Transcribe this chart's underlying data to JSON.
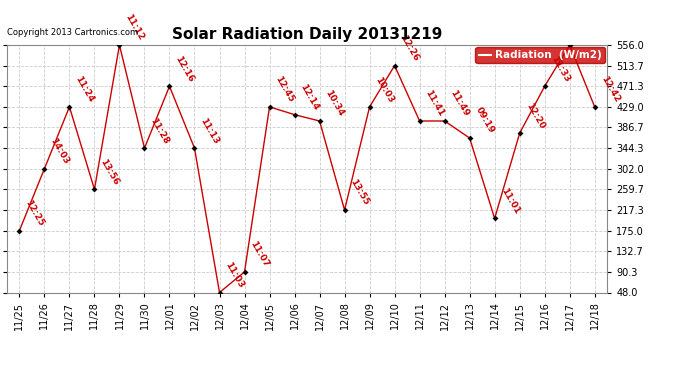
{
  "title": "Solar Radiation Daily 20131219",
  "copyright": "Copyright 2013 Cartronics.com",
  "legend_label": "Radiation  (W/m2)",
  "dates": [
    "11/25",
    "11/26",
    "11/27",
    "11/28",
    "11/29",
    "11/30",
    "12/01",
    "12/02",
    "12/03",
    "12/04",
    "12/05",
    "12/06",
    "12/07",
    "12/08",
    "12/09",
    "12/10",
    "12/11",
    "12/12",
    "12/13",
    "12/14",
    "12/15",
    "12/16",
    "12/17",
    "12/18"
  ],
  "values": [
    175.0,
    302.0,
    429.0,
    259.7,
    556.0,
    344.3,
    471.3,
    344.3,
    48.0,
    90.3,
    429.0,
    413.0,
    400.0,
    217.3,
    429.0,
    513.7,
    400.0,
    400.0,
    365.0,
    200.0,
    375.0,
    471.3,
    556.0,
    429.0
  ],
  "time_labels": [
    "12:25",
    "14:03",
    "11:24",
    "13:56",
    "11:12",
    "11:28",
    "12:16",
    "11:13",
    "11:03",
    "11:07",
    "12:45",
    "12:14",
    "10:34",
    "13:55",
    "10:03",
    "12:26",
    "11:41",
    "11:49",
    "09:19",
    "11:01",
    "12:20",
    "11:33",
    "",
    "12:42"
  ],
  "ylim_min": 48.0,
  "ylim_max": 556.0,
  "yticks": [
    48.0,
    90.3,
    132.7,
    175.0,
    217.3,
    259.7,
    302.0,
    344.3,
    386.7,
    429.0,
    471.3,
    513.7,
    556.0
  ],
  "line_color": "#cc0000",
  "marker_color": "#000000",
  "background_color": "#ffffff",
  "plot_bg_color": "#ffffff",
  "grid_color": "#cccccc",
  "title_fontsize": 11,
  "label_fontsize": 6.5,
  "tick_fontsize": 7,
  "legend_bg": "#cc0000",
  "legend_fg": "#ffffff"
}
